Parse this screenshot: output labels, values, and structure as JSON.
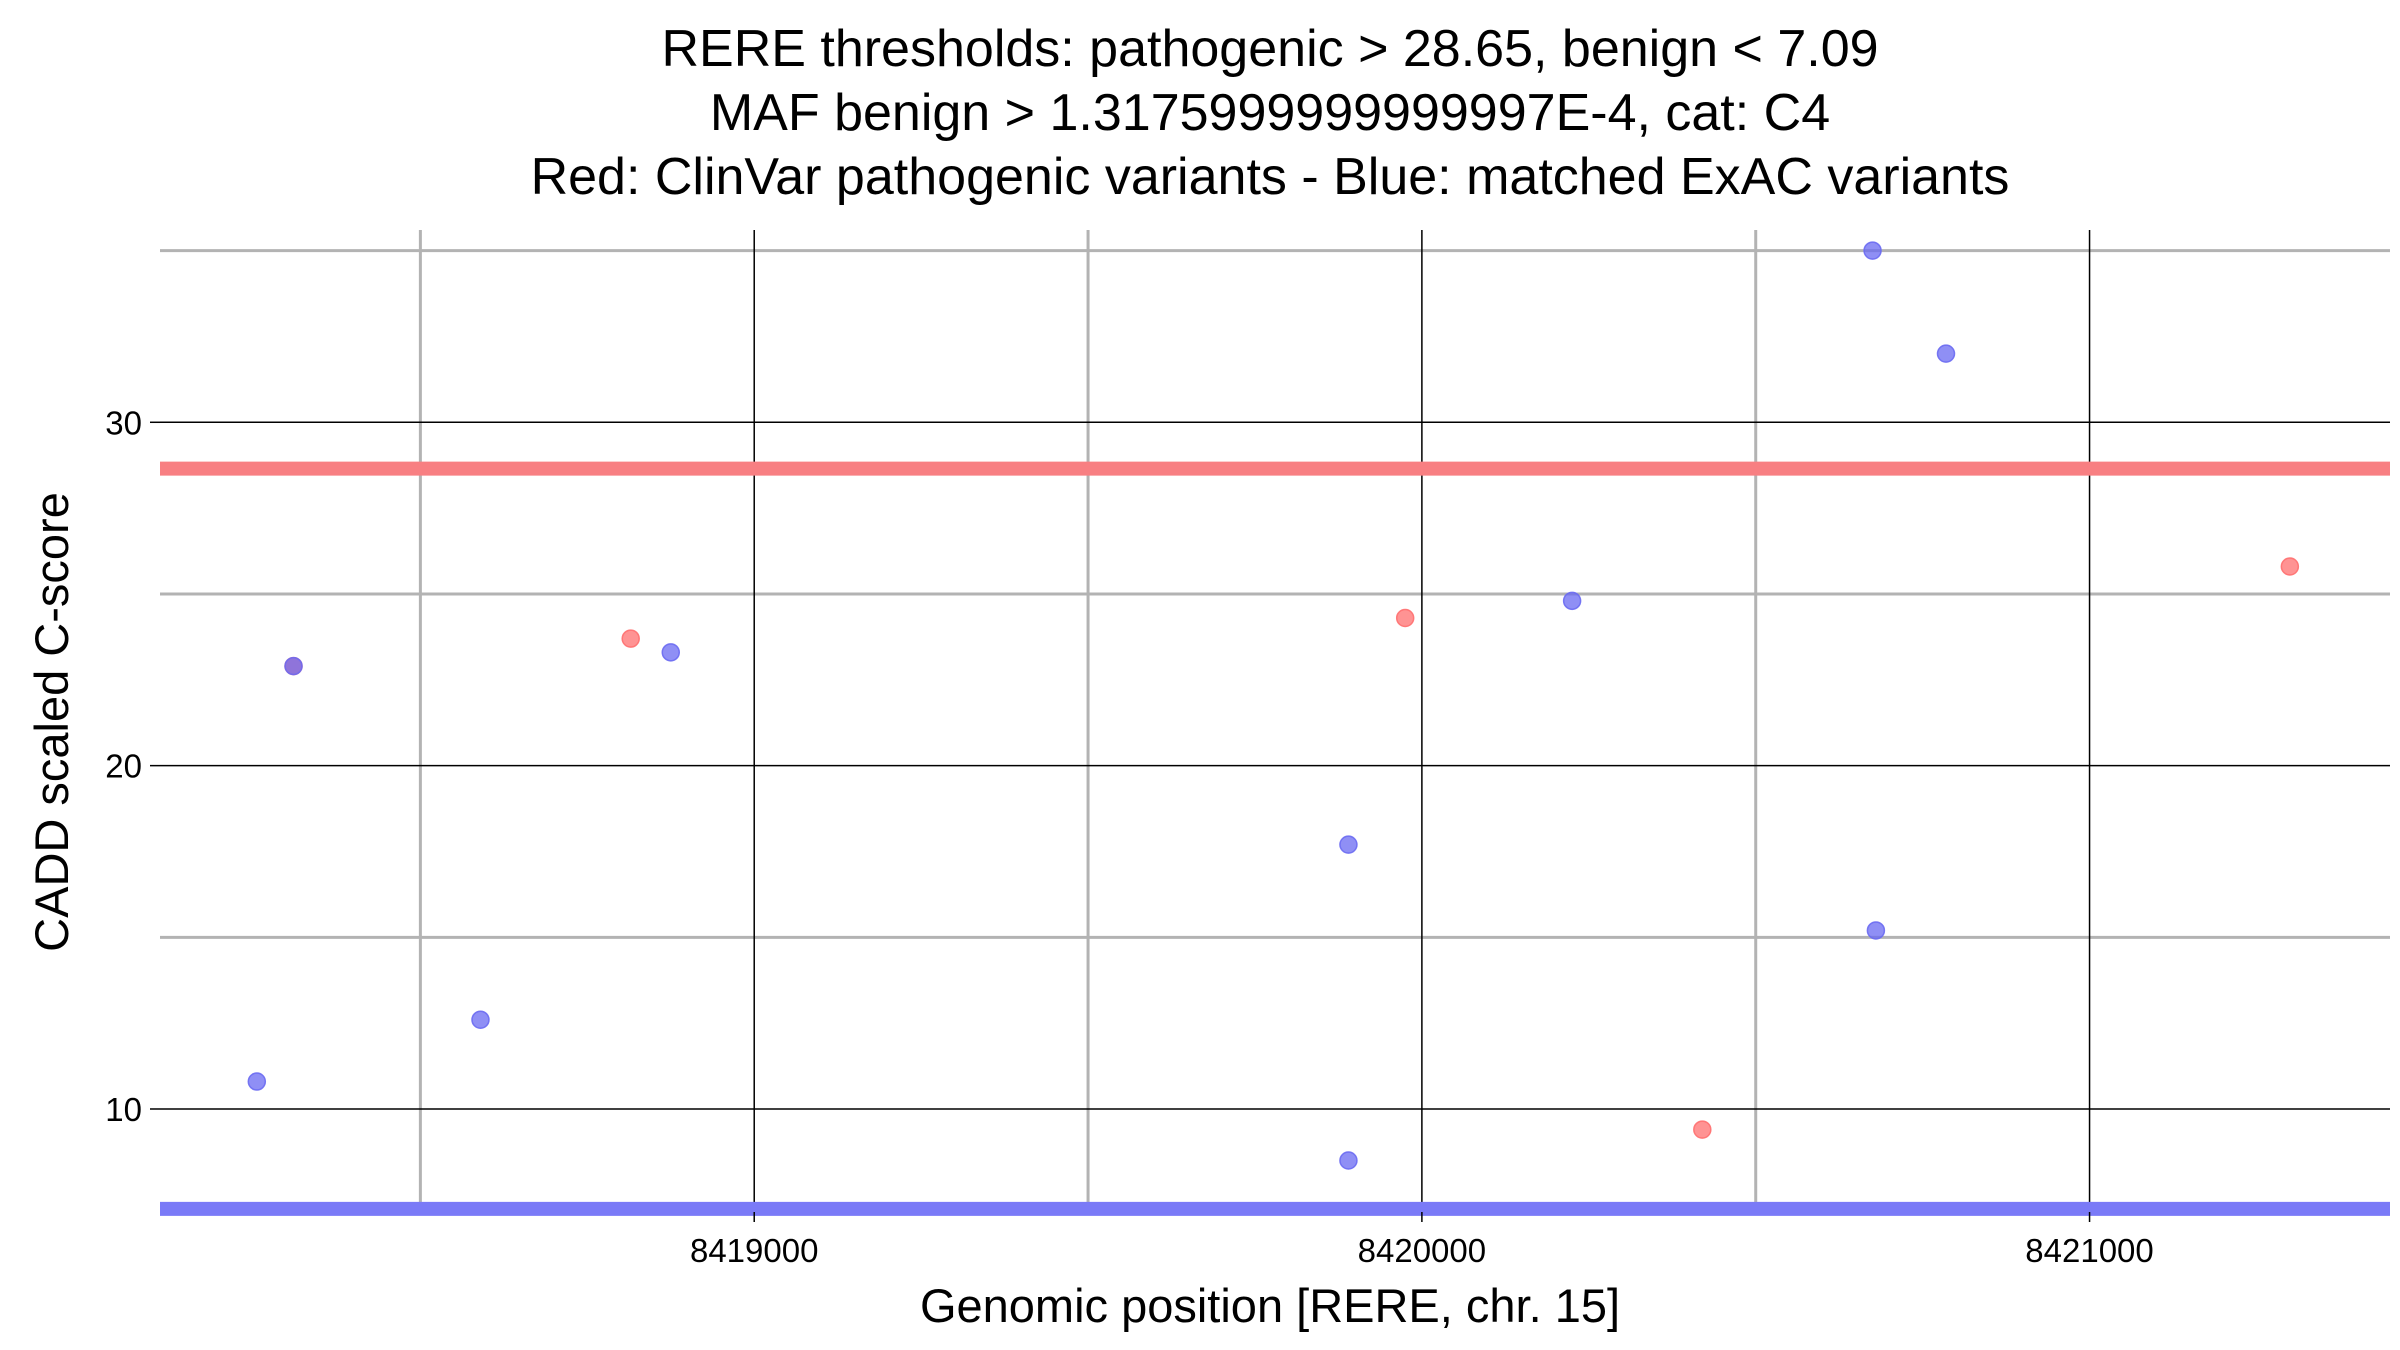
{
  "chart_data": {
    "type": "scatter",
    "title_lines": [
      "RERE thresholds: pathogenic > 28.65, benign < 7.09",
      "MAF benign > 1.3175999999999997E-4, cat: C4",
      "Red: ClinVar pathogenic variants - Blue: matched ExAC variants"
    ],
    "xlabel": "Genomic position [RERE, chr. 15]",
    "ylabel": "CADD scaled C-score",
    "xlim": [
      8418110,
      8421450
    ],
    "ylim": [
      7.0,
      35.6
    ],
    "x_ticks": [
      8419000,
      8420000,
      8421000
    ],
    "x_tick_labels": [
      "8419000",
      "8420000",
      "8421000"
    ],
    "x_minor": [
      8418500,
      8419500,
      8420500
    ],
    "y_ticks": [
      10,
      20,
      30
    ],
    "y_tick_labels": [
      "10",
      "20",
      "30"
    ],
    "y_minor": [
      15,
      25,
      35
    ],
    "grid": true,
    "thresholds": [
      {
        "name": "pathogenic",
        "value": 28.65,
        "color": "#f87f82"
      },
      {
        "name": "benign",
        "value": 7.09,
        "color": "#7a7af7"
      }
    ],
    "series": [
      {
        "color": "#ff6f6f",
        "points": [
          {
            "x": 8418310,
            "y": 22.9
          },
          {
            "x": 8418815,
            "y": 23.7
          },
          {
            "x": 8419975,
            "y": 24.3
          },
          {
            "x": 8420420,
            "y": 9.4
          },
          {
            "x": 8421300,
            "y": 25.8
          }
        ]
      },
      {
        "color": "#6a6af2",
        "points": [
          {
            "x": 8418255,
            "y": 10.8
          },
          {
            "x": 8418310,
            "y": 22.9
          },
          {
            "x": 8418590,
            "y": 12.6
          },
          {
            "x": 8418875,
            "y": 23.3
          },
          {
            "x": 8419890,
            "y": 17.7
          },
          {
            "x": 8419890,
            "y": 8.5
          },
          {
            "x": 8420225,
            "y": 24.8
          },
          {
            "x": 8420675,
            "y": 35.0
          },
          {
            "x": 8420680,
            "y": 15.2
          },
          {
            "x": 8420785,
            "y": 32.0
          }
        ]
      }
    ]
  }
}
